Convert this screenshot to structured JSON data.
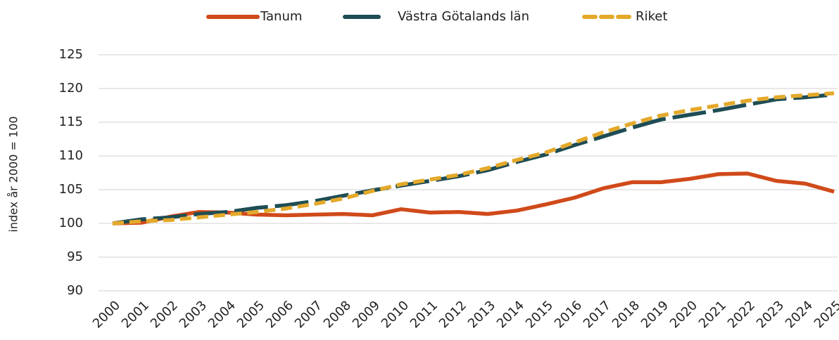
{
  "chart_data": {
    "type": "line",
    "y_label": "index år 2000 = 100",
    "categories": [
      "2000",
      "2001",
      "2002",
      "2003",
      "2004",
      "2005",
      "2006",
      "2007",
      "2008",
      "2009",
      "2010",
      "2011",
      "2012",
      "2013",
      "2014",
      "2015",
      "2016",
      "2017",
      "2018",
      "2019",
      "2020",
      "2021",
      "2022",
      "2023",
      "2024",
      "2025"
    ],
    "series": [
      {
        "name": "Tanum",
        "color": "#d04a1a",
        "line_style": "solid",
        "values": [
          100,
          100.1,
          101,
          101.7,
          101.6,
          101.3,
          101.2,
          101.3,
          101.4,
          101.2,
          102.1,
          101.6,
          101.7,
          101.4,
          101.9,
          102.8,
          103.8,
          105.2,
          106.1,
          106.1,
          106.6,
          107.3,
          107.4,
          106.3,
          105.9,
          104.7
        ]
      },
      {
        "name": "Västra Götalands län",
        "color": "#1e4d55",
        "line_style": "long-dash",
        "values": [
          100,
          100.6,
          100.9,
          101.4,
          101.7,
          102.3,
          102.7,
          103.3,
          104.1,
          104.9,
          105.6,
          106.3,
          107,
          107.9,
          109.1,
          110.2,
          111.6,
          112.9,
          114.2,
          115.4,
          116.1,
          116.8,
          117.6,
          118.4,
          118.7,
          119.1
        ]
      },
      {
        "name": "Riket",
        "color": "#e4a92a",
        "line_style": "dash",
        "values": [
          100,
          100.3,
          100.5,
          100.9,
          101.3,
          101.7,
          102.2,
          102.9,
          103.7,
          104.8,
          105.8,
          106.5,
          107.2,
          108.2,
          109.4,
          110.5,
          112,
          113.5,
          114.8,
          116,
          116.8,
          117.5,
          118.2,
          118.7,
          119,
          119.3
        ]
      }
    ],
    "ylim": [
      90,
      125
    ],
    "yticks": [
      90,
      95,
      100,
      105,
      110,
      115,
      120,
      125
    ],
    "grid": true,
    "legend": "top"
  }
}
